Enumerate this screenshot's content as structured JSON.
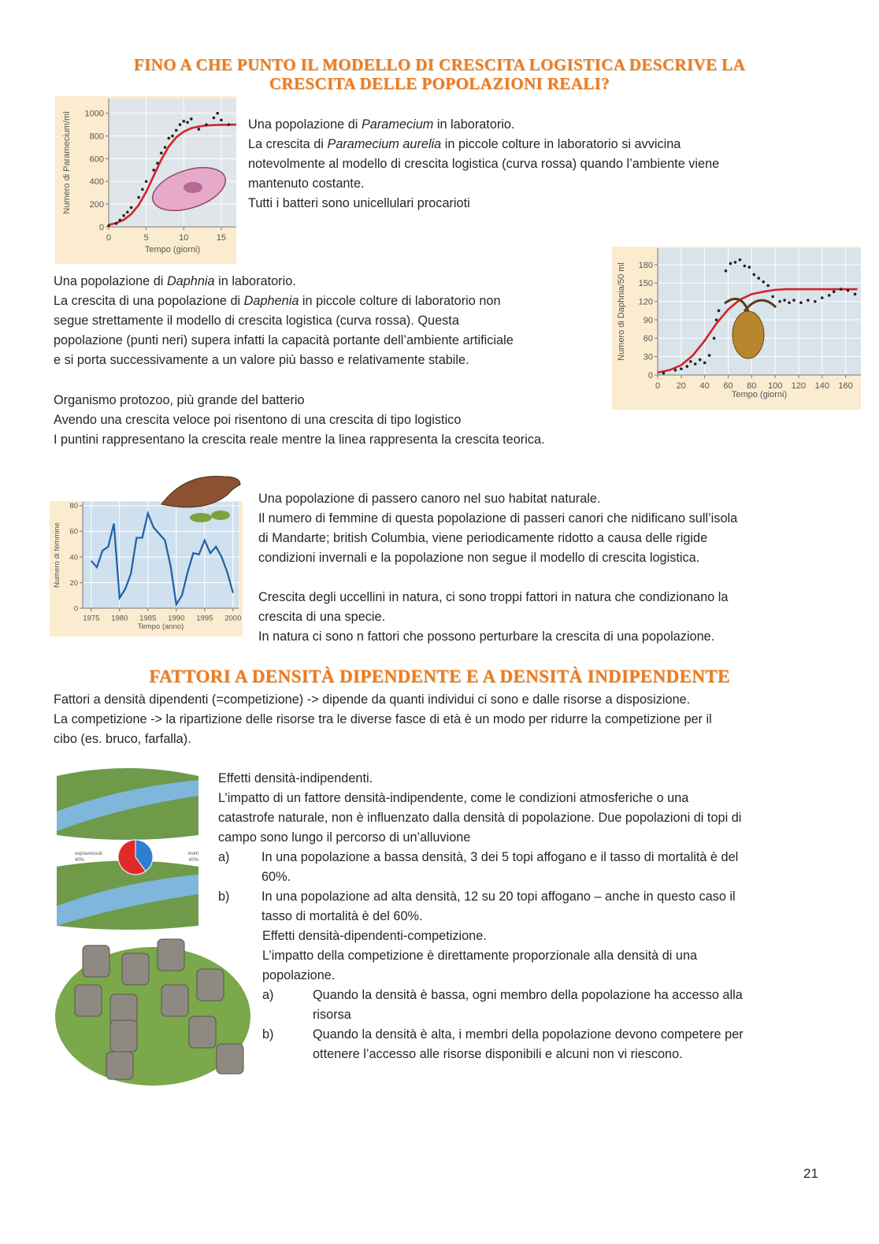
{
  "heading": [
    "FINO A CHE PUNTO IL MODELLO DI CRESCITA LOGISTICA DESCRIVE LA",
    "CRESCITA DELLE POPOLAZIONI REALI?"
  ],
  "heading2": "FATTORI A DENSITÀ DIPENDENTE E A DENSITÀ INDIPENDENTE",
  "page_number": "21",
  "blocks": [
    {
      "lines": [
        [
          {
            "text": "Una popolazione di "
          },
          {
            "text": "Paramecium",
            "italic": true
          },
          {
            "text": " in laboratorio."
          }
        ],
        [
          {
            "text": "La crescita di "
          },
          {
            "text": "Paramecium aurelia",
            "italic": true
          },
          {
            "text": " in piccole colture in laboratorio si avvicina"
          }
        ],
        "notevolmente al modello di crescita logistica (curva rossa) quando l’ambiente viene",
        "mantenuto costante.",
        "Tutti i batteri sono unicellulari procarioti"
      ]
    },
    {
      "lines": [
        [
          {
            "text": "Una popolazione di "
          },
          {
            "text": "Daphnia",
            "italic": true
          },
          {
            "text": " in laboratorio."
          }
        ],
        [
          {
            "text": "La crescita di una popolazione di "
          },
          {
            "text": "Daphenia",
            "italic": true
          },
          {
            "text": " in piccole colture di laboratorio non"
          }
        ],
        "segue strettamente il modello di crescita logistica (curva rossa). Questa",
        "popolazione (punti neri) supera infatti la capacità portante dell’ambiente artificiale",
        "e si porta successivamente a un valore più basso e relativamente stabile."
      ]
    },
    {
      "lines": [
        "Organismo protozoo, più grande del batterio",
        "Avendo una crescita veloce poi risentono di una crescita di tipo logistico",
        "I puntini rappresentano la crescita reale mentre la linea rappresenta la crescita teorica."
      ]
    },
    {
      "lines": [
        "Una popolazione di passero canoro nel suo habitat naturale.",
        "Il numero di femmine di questa popolazione di passeri canori che nidificano sull’isola",
        "di Mandarte; british Columbia, viene periodicamente ridotto a causa delle rigide",
        "condizioni invernali e la popolazione non segue il modello di crescita logistica."
      ]
    },
    {
      "lines": [
        "Crescita degli uccellini in natura, ci sono troppi fattori in natura che condizionano la",
        "crescita di una specie.",
        "In natura ci sono n fattori che possono perturbare la crescita di una popolazione."
      ]
    },
    {
      "lines": [
        "Fattori a densità dipendenti (=competizione) -> dipende da quanti individui ci sono e dalle risorse a disposizione.",
        "La competizione -> la ripartizione delle risorse tra le diverse fasce di età è un modo per ridurre la competizione per il",
        "cibo (es. bruco, farfalla)."
      ]
    },
    {
      "lines": [
        "Effetti densità-indipendenti.",
        "L’impatto di un fattore densità-indipendente, come le condizioni atmosferiche o una",
        "catastrofe naturale, non è influenzato dalla densità di popolazione. Due popolazioni di topi di",
        "campo sono lungo il percorso di un’alluvione"
      ],
      "items": [
        {
          "label": "a)",
          "lines": [
            "In una popolazione a bassa densità, 3 dei 5 topi affogano e il tasso di mortalità è del",
            "60%."
          ]
        },
        {
          "label": "b)",
          "lines": [
            "In una popolazione ad alta densità, 12 su 20 topi affogano – anche in questo caso il",
            "tasso di mortalità è del 60%."
          ]
        }
      ]
    },
    {
      "lines": [
        "Effetti densità-dipendenti-competizione.",
        "L’impatto della competizione è direttamente proporzionale alla densità di una",
        "popolazione."
      ],
      "items": [
        {
          "label": "a)",
          "lines": [
            "Quando la densità è bassa, ogni membro della popolazione ha accesso alla",
            "risorsa"
          ]
        },
        {
          "label": "b)",
          "lines": [
            "Quando la densità è alta, i membri della popolazione devono competere per",
            "ottenere l’accesso alle risorse disponibili e alcuni non vi riescono."
          ]
        }
      ]
    }
  ],
  "chart_data": [
    {
      "type": "scatter",
      "ylabel": "Numero di Paramecium/ml",
      "xlabel": "Tempo (giorni)",
      "xlim": [
        0,
        17
      ],
      "ylim": [
        0,
        1130
      ],
      "xticks": [
        0,
        5,
        10,
        15
      ],
      "yticks": [
        0,
        200,
        400,
        600,
        800,
        1000
      ],
      "grid": true,
      "series": [
        {
          "mode": "line",
          "color": "#d4222a",
          "x": [
            0,
            1,
            2,
            3,
            4,
            5,
            6,
            7,
            8,
            9,
            10,
            11,
            12,
            13,
            14,
            15,
            16,
            17
          ],
          "values": [
            18,
            34,
            62,
            112,
            193,
            309,
            450,
            591,
            707,
            788,
            838,
            868,
            884,
            892,
            896,
            898,
            899,
            900
          ]
        },
        {
          "mode": "markers",
          "color": "#222222",
          "x": [
            0,
            1,
            1.5,
            2,
            2.5,
            3,
            4,
            4.5,
            5,
            6,
            6.5,
            7,
            7.5,
            8,
            8.5,
            9,
            9.5,
            10,
            10.5,
            11,
            12,
            13,
            14,
            14.5,
            15,
            16
          ],
          "values": [
            10,
            30,
            60,
            100,
            130,
            170,
            260,
            330,
            400,
            500,
            560,
            650,
            700,
            780,
            800,
            850,
            900,
            930,
            920,
            950,
            860,
            900,
            960,
            1000,
            940,
            900
          ]
        }
      ]
    },
    {
      "type": "scatter",
      "ylabel": "Numero di Daphnia/50 ml",
      "xlabel": "Tempo (giorni)",
      "xlim": [
        0,
        173
      ],
      "ylim": [
        0,
        207
      ],
      "xticks": [
        0,
        20,
        40,
        60,
        80,
        100,
        120,
        140,
        160
      ],
      "yticks": [
        0,
        30,
        60,
        90,
        120,
        150,
        180
      ],
      "grid": true,
      "series": [
        {
          "mode": "line",
          "color": "#d4222a",
          "x": [
            0,
            10,
            20,
            30,
            40,
            50,
            60,
            70,
            80,
            90,
            100,
            110,
            120,
            130,
            140,
            150,
            160,
            170
          ],
          "values": [
            4,
            8,
            16,
            32,
            56,
            84,
            107,
            123,
            132,
            136,
            139,
            140,
            140,
            140,
            140,
            140,
            140,
            140
          ]
        },
        {
          "mode": "markers",
          "color": "#222222",
          "x": [
            5,
            15,
            20,
            25,
            28,
            32,
            36,
            40,
            44,
            48,
            50,
            52,
            58,
            62,
            66,
            70,
            74,
            78,
            82,
            86,
            90,
            94,
            98,
            104,
            108,
            112,
            116,
            122,
            128,
            134,
            140,
            146,
            150,
            156,
            162,
            168
          ],
          "values": [
            3,
            8,
            10,
            14,
            22,
            18,
            25,
            20,
            32,
            60,
            90,
            105,
            170,
            182,
            184,
            188,
            178,
            176,
            164,
            158,
            152,
            146,
            128,
            120,
            122,
            118,
            122,
            118,
            122,
            120,
            126,
            130,
            136,
            140,
            138,
            132
          ]
        }
      ]
    },
    {
      "type": "line",
      "ylabel": "Numero di femmine",
      "xlabel": "Tempo (anno)",
      "xlim": [
        1973.5,
        2001
      ],
      "ylim": [
        0,
        83
      ],
      "xticks": [
        1975,
        1980,
        1985,
        1990,
        1995,
        2000
      ],
      "yticks": [
        0,
        20,
        40,
        60,
        80
      ],
      "grid": true,
      "series": [
        {
          "color": "#1f5fa8",
          "x": [
            1975,
            1976,
            1977,
            1978,
            1979,
            1980,
            1981,
            1982,
            1983,
            1984,
            1985,
            1986,
            1987,
            1988,
            1989,
            1990,
            1991,
            1992,
            1993,
            1994,
            1995,
            1996,
            1997,
            1998,
            1999,
            2000
          ],
          "values": [
            37,
            32,
            45,
            48,
            66,
            8,
            15,
            27,
            55,
            55,
            74,
            63,
            58,
            53,
            33,
            3,
            10,
            28,
            43,
            42,
            53,
            43,
            48,
            40,
            28,
            12
          ]
        }
      ]
    },
    {
      "type": "pie",
      "categories": [
        "sopravvissuti",
        "morti"
      ],
      "values": [
        40,
        60
      ],
      "value_labels": [
        "40%",
        "60%"
      ],
      "colors": [
        "#2e7fd0",
        "#e02a2a"
      ]
    }
  ]
}
